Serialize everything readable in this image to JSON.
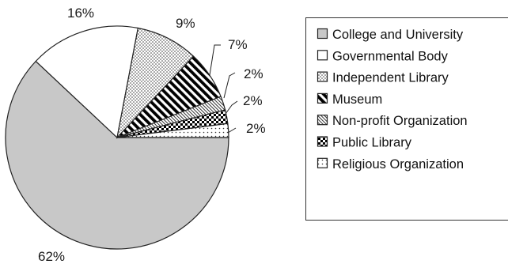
{
  "chart_data": {
    "type": "pie",
    "title": "",
    "legend_position": "right",
    "slices": [
      {
        "label": "College and University",
        "value": 62,
        "display": "62%",
        "fill": "solid-gray",
        "color": "#c8c8c8"
      },
      {
        "label": "Governmental Body",
        "value": 16,
        "display": "16%",
        "fill": "white",
        "color": "#ffffff"
      },
      {
        "label": "Independent Library",
        "value": 9,
        "display": "9%",
        "fill": "dots",
        "color": "#ffffff"
      },
      {
        "label": "Museum",
        "value": 7,
        "display": "7%",
        "fill": "diagonal-stripes",
        "color": "#000000"
      },
      {
        "label": "Non-profit Organization",
        "value": 2,
        "display": "2%",
        "fill": "fine-hatch",
        "color": "#ffffff"
      },
      {
        "label": "Public Library",
        "value": 2,
        "display": "2%",
        "fill": "checker",
        "color": "#000000"
      },
      {
        "label": "Religious Organization",
        "value": 2,
        "display": "2%",
        "fill": "sparse-dots",
        "color": "#ffffff"
      }
    ]
  }
}
